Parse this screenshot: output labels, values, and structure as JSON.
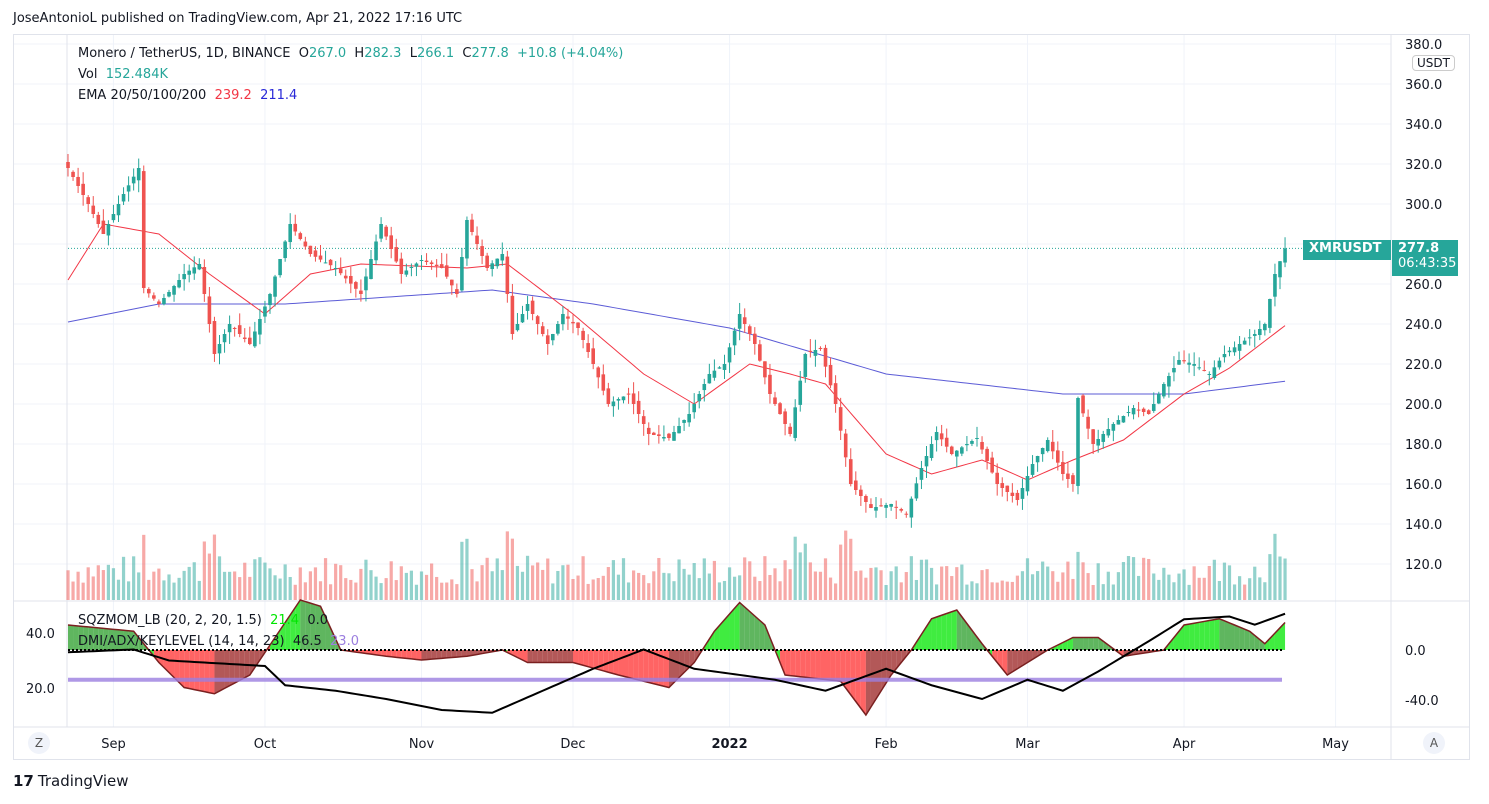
{
  "header": {
    "published": "JoseAntonioL published on TradingView.com, Apr 21, 2022 17:16 UTC"
  },
  "legend": {
    "symbol": "Monero / TetherUS, 1D, BINANCE",
    "o_label": "O",
    "o": "267.0",
    "h_label": "H",
    "h": "282.3",
    "l_label": "L",
    "l": "266.1",
    "c_label": "C",
    "c": "277.8",
    "change": "+10.8 (+4.04%)",
    "vol_label": "Vol",
    "vol": "152.484K",
    "ema_label": "EMA 20/50/100/200",
    "ema20": "239.2",
    "ema200": "211.4"
  },
  "indicators": {
    "sqz_label": "SQZMOM_LB (20, 2, 20, 1.5)",
    "sqz_v1": "21.4",
    "sqz_v2": "0.0",
    "dmi_label": "DMI/ADX/KEYLEVEL (14, 14, 23)",
    "dmi_v1": "46.5",
    "dmi_v2": "23.0"
  },
  "price_axis": {
    "currency": "USDT",
    "ticks": [
      "380.0",
      "360.0",
      "340.0",
      "320.0",
      "300.0",
      "280.0",
      "260.0",
      "240.0",
      "220.0",
      "200.0",
      "180.0",
      "160.0",
      "140.0",
      "120.0"
    ]
  },
  "price_label": {
    "symbol": "XMRUSDT",
    "price": "277.8",
    "countdown": "06:43:35"
  },
  "ind_axis": {
    "left_ticks": [
      "40.0",
      "20.0"
    ],
    "right_ticks": [
      "0.0",
      "-40.0"
    ]
  },
  "time_axis": {
    "ticks": [
      "Sep",
      "Oct",
      "Nov",
      "Dec",
      "2022",
      "Feb",
      "Mar",
      "Apr",
      "May"
    ],
    "zoom_btn": "Z",
    "auto_btn": "A"
  },
  "footer": {
    "brand": "TradingView"
  },
  "colors": {
    "up": "#26a69a",
    "down": "#ef5350",
    "ema20": "#f23645",
    "ema200": "#5b5bd6",
    "key_level": "#9c7fe0",
    "adx": "#000000"
  },
  "chart_data": {
    "type": "candlestick",
    "title": "Monero / TetherUS, 1D, BINANCE",
    "ylim": [
      105,
      385
    ],
    "close_path": [
      [
        "2021-08-23",
        318
      ],
      [
        "2021-08-27",
        300
      ],
      [
        "2021-08-30",
        285
      ],
      [
        "2021-09-03",
        305
      ],
      [
        "2021-09-06",
        318
      ],
      [
        "2021-09-07",
        258
      ],
      [
        "2021-09-10",
        250
      ],
      [
        "2021-09-15",
        265
      ],
      [
        "2021-09-18",
        270
      ],
      [
        "2021-09-21",
        225
      ],
      [
        "2021-09-24",
        240
      ],
      [
        "2021-09-28",
        230
      ],
      [
        "2021-10-02",
        255
      ],
      [
        "2021-10-06",
        290
      ],
      [
        "2021-10-10",
        275
      ],
      [
        "2021-10-15",
        268
      ],
      [
        "2021-10-20",
        255
      ],
      [
        "2021-10-24",
        290
      ],
      [
        "2021-10-28",
        265
      ],
      [
        "2021-11-01",
        272
      ],
      [
        "2021-11-05",
        268
      ],
      [
        "2021-11-08",
        255
      ],
      [
        "2021-11-10",
        292
      ],
      [
        "2021-11-14",
        268
      ],
      [
        "2021-11-17",
        275
      ],
      [
        "2021-11-19",
        235
      ],
      [
        "2021-11-22",
        250
      ],
      [
        "2021-11-26",
        230
      ],
      [
        "2021-11-29",
        245
      ],
      [
        "2021-12-02",
        238
      ],
      [
        "2021-12-05",
        220
      ],
      [
        "2021-12-08",
        200
      ],
      [
        "2021-12-12",
        205
      ],
      [
        "2021-12-16",
        185
      ],
      [
        "2021-12-20",
        183
      ],
      [
        "2021-12-24",
        195
      ],
      [
        "2021-12-28",
        215
      ],
      [
        "2021-12-31",
        220
      ],
      [
        "2022-01-03",
        245
      ],
      [
        "2022-01-06",
        230
      ],
      [
        "2022-01-09",
        205
      ],
      [
        "2022-01-13",
        185
      ],
      [
        "2022-01-16",
        225
      ],
      [
        "2022-01-19",
        228
      ],
      [
        "2022-01-22",
        200
      ],
      [
        "2022-01-25",
        160
      ],
      [
        "2022-01-29",
        148
      ],
      [
        "2022-02-02",
        150
      ],
      [
        "2022-02-05",
        145
      ],
      [
        "2022-02-08",
        168
      ],
      [
        "2022-02-11",
        186
      ],
      [
        "2022-02-14",
        175
      ],
      [
        "2022-02-17",
        180
      ],
      [
        "2022-02-19",
        183
      ],
      [
        "2022-02-23",
        160
      ],
      [
        "2022-02-27",
        152
      ],
      [
        "2022-03-02",
        170
      ],
      [
        "2022-03-05",
        182
      ],
      [
        "2022-03-08",
        165
      ],
      [
        "2022-03-10",
        160
      ],
      [
        "2022-03-11",
        203
      ],
      [
        "2022-03-14",
        180
      ],
      [
        "2022-03-18",
        190
      ],
      [
        "2022-03-22",
        198
      ],
      [
        "2022-03-25",
        195
      ],
      [
        "2022-03-28",
        210
      ],
      [
        "2022-03-31",
        222
      ],
      [
        "2022-04-03",
        220
      ],
      [
        "2022-04-06",
        215
      ],
      [
        "2022-04-09",
        225
      ],
      [
        "2022-04-12",
        230
      ],
      [
        "2022-04-15",
        235
      ],
      [
        "2022-04-17",
        240
      ],
      [
        "2022-04-19",
        265
      ],
      [
        "2022-04-21",
        277.8
      ]
    ],
    "ema20_path": [
      [
        "2021-08-23",
        262
      ],
      [
        "2021-08-30",
        290
      ],
      [
        "2021-09-10",
        285
      ],
      [
        "2021-09-20",
        265
      ],
      [
        "2021-10-01",
        245
      ],
      [
        "2021-10-10",
        265
      ],
      [
        "2021-10-20",
        270
      ],
      [
        "2021-11-10",
        268
      ],
      [
        "2021-11-18",
        270
      ],
      [
        "2021-12-01",
        245
      ],
      [
        "2021-12-15",
        215
      ],
      [
        "2021-12-25",
        200
      ],
      [
        "2022-01-05",
        220
      ],
      [
        "2022-01-13",
        215
      ],
      [
        "2022-01-20",
        210
      ],
      [
        "2022-02-01",
        175
      ],
      [
        "2022-02-10",
        165
      ],
      [
        "2022-02-20",
        172
      ],
      [
        "2022-03-01",
        162
      ],
      [
        "2022-03-10",
        172
      ],
      [
        "2022-03-20",
        182
      ],
      [
        "2022-04-01",
        205
      ],
      [
        "2022-04-10",
        218
      ],
      [
        "2022-04-21",
        239.2
      ]
    ],
    "ema200_path": [
      [
        "2021-08-23",
        241
      ],
      [
        "2021-09-10",
        250
      ],
      [
        "2021-10-05",
        250
      ],
      [
        "2021-11-15",
        257
      ],
      [
        "2021-12-05",
        250
      ],
      [
        "2022-01-01",
        238
      ],
      [
        "2022-02-01",
        215
      ],
      [
        "2022-03-08",
        205
      ],
      [
        "2022-04-01",
        205
      ],
      [
        "2022-04-21",
        211.4
      ]
    ],
    "momentum_path": [
      [
        "2021-08-23",
        20
      ],
      [
        "2021-09-05",
        15
      ],
      [
        "2021-09-10",
        -10
      ],
      [
        "2021-09-15",
        -30
      ],
      [
        "2021-09-21",
        -35
      ],
      [
        "2021-09-28",
        -20
      ],
      [
        "2021-10-03",
        10
      ],
      [
        "2021-10-08",
        40
      ],
      [
        "2021-10-12",
        35
      ],
      [
        "2021-10-16",
        0
      ],
      [
        "2021-10-25",
        -5
      ],
      [
        "2021-11-01",
        -8
      ],
      [
        "2021-11-10",
        -5
      ],
      [
        "2021-11-17",
        0
      ],
      [
        "2021-11-22",
        -10
      ],
      [
        "2021-12-01",
        -10
      ],
      [
        "2021-12-10",
        -20
      ],
      [
        "2021-12-20",
        -30
      ],
      [
        "2021-12-25",
        -10
      ],
      [
        "2021-12-29",
        15
      ],
      [
        "2022-01-03",
        38
      ],
      [
        "2022-01-08",
        20
      ],
      [
        "2022-01-12",
        -20
      ],
      [
        "2022-01-23",
        -25
      ],
      [
        "2022-01-28",
        -52
      ],
      [
        "2022-02-02",
        -20
      ],
      [
        "2022-02-06",
        0
      ],
      [
        "2022-02-10",
        25
      ],
      [
        "2022-02-15",
        32
      ],
      [
        "2022-02-20",
        5
      ],
      [
        "2022-02-25",
        -20
      ],
      [
        "2022-03-05",
        0
      ],
      [
        "2022-03-10",
        10
      ],
      [
        "2022-03-15",
        10
      ],
      [
        "2022-03-20",
        -5
      ],
      [
        "2022-03-28",
        0
      ],
      [
        "2022-04-01",
        20
      ],
      [
        "2022-04-08",
        25
      ],
      [
        "2022-04-14",
        15
      ],
      [
        "2022-04-17",
        5
      ],
      [
        "2022-04-21",
        22
      ]
    ],
    "adx_path": [
      [
        "2021-08-23",
        33
      ],
      [
        "2021-09-05",
        34
      ],
      [
        "2021-09-12",
        30
      ],
      [
        "2021-10-01",
        28
      ],
      [
        "2021-10-05",
        21
      ],
      [
        "2021-10-15",
        19
      ],
      [
        "2021-10-25",
        16
      ],
      [
        "2021-11-05",
        12
      ],
      [
        "2021-11-15",
        11
      ],
      [
        "2021-11-25",
        19
      ],
      [
        "2021-12-05",
        27
      ],
      [
        "2021-12-15",
        34
      ],
      [
        "2021-12-25",
        27
      ],
      [
        "2022-01-10",
        23
      ],
      [
        "2022-01-20",
        19
      ],
      [
        "2022-02-01",
        27
      ],
      [
        "2022-02-10",
        21
      ],
      [
        "2022-02-20",
        16
      ],
      [
        "2022-03-01",
        23
      ],
      [
        "2022-03-08",
        19
      ],
      [
        "2022-03-15",
        26
      ],
      [
        "2022-03-25",
        37
      ],
      [
        "2022-04-01",
        45
      ],
      [
        "2022-04-10",
        46
      ],
      [
        "2022-04-15",
        43
      ],
      [
        "2022-04-21",
        47
      ]
    ],
    "key_level": 23
  }
}
